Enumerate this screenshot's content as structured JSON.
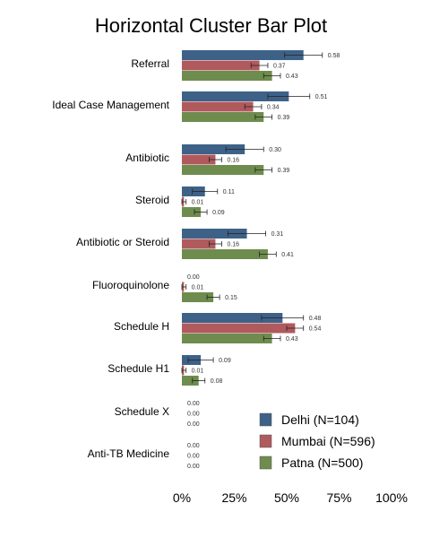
{
  "chart_data": {
    "type": "bar",
    "orientation": "horizontal",
    "title": "Horizontal Cluster Bar Plot",
    "categories": [
      "Referral",
      "Ideal Case Management",
      "Antibiotic",
      "Steroid",
      "Antibiotic or Steroid",
      "Fluoroquinolone",
      "Schedule H",
      "Schedule H1",
      "Schedule X",
      "Anti-TB Medicine"
    ],
    "series": [
      {
        "name": "Delhi (N=104)",
        "color": "#3e6188",
        "values": [
          0.58,
          0.51,
          0.3,
          0.11,
          0.31,
          0.0,
          0.48,
          0.09,
          0.0,
          0.0
        ],
        "labels": [
          "0.58",
          "0.51",
          "0.30",
          "0.11",
          "0.31",
          "0.00",
          "0.48",
          "0.09",
          "0.00",
          "0.00"
        ],
        "ci": [
          [
            0.49,
            0.67
          ],
          [
            0.41,
            0.61
          ],
          [
            0.21,
            0.39
          ],
          [
            0.05,
            0.17
          ],
          [
            0.22,
            0.4
          ],
          [
            0,
            0
          ],
          [
            0.38,
            0.58
          ],
          [
            0.03,
            0.15
          ],
          [
            0,
            0
          ],
          [
            0,
            0
          ]
        ]
      },
      {
        "name": "Mumbai (N=596)",
        "color": "#b05a5e",
        "values": [
          0.37,
          0.34,
          0.16,
          0.01,
          0.16,
          0.01,
          0.54,
          0.01,
          0.0,
          0.0
        ],
        "labels": [
          "0.37",
          "0.34",
          "0.16",
          "0.01",
          "0.16",
          "0.01",
          "0.54",
          "0.01",
          "0.00",
          "0.00"
        ],
        "ci": [
          [
            0.33,
            0.41
          ],
          [
            0.3,
            0.38
          ],
          [
            0.13,
            0.19
          ],
          [
            0.0,
            0.02
          ],
          [
            0.13,
            0.19
          ],
          [
            0.0,
            0.02
          ],
          [
            0.5,
            0.58
          ],
          [
            0.0,
            0.02
          ],
          [
            0,
            0
          ],
          [
            0,
            0
          ]
        ]
      },
      {
        "name": "Patna (N=500)",
        "color": "#6e8c4e",
        "values": [
          0.43,
          0.39,
          0.39,
          0.09,
          0.41,
          0.15,
          0.43,
          0.08,
          0.0,
          0.0
        ],
        "labels": [
          "0.43",
          "0.39",
          "0.39",
          "0.09",
          "0.41",
          "0.15",
          "0.43",
          "0.08",
          "0.00",
          "0.00"
        ],
        "ci": [
          [
            0.39,
            0.47
          ],
          [
            0.35,
            0.43
          ],
          [
            0.35,
            0.43
          ],
          [
            0.06,
            0.12
          ],
          [
            0.37,
            0.45
          ],
          [
            0.12,
            0.18
          ],
          [
            0.39,
            0.47
          ],
          [
            0.05,
            0.11
          ],
          [
            0,
            0
          ],
          [
            0,
            0
          ]
        ]
      }
    ],
    "xlim": [
      0,
      1
    ],
    "xticks": [
      0,
      0.25,
      0.5,
      0.75,
      1
    ],
    "xtick_labels": [
      "0%",
      "25%",
      "50%",
      "75%",
      "100%"
    ],
    "legend_position": "bottom-right",
    "grid": false
  }
}
